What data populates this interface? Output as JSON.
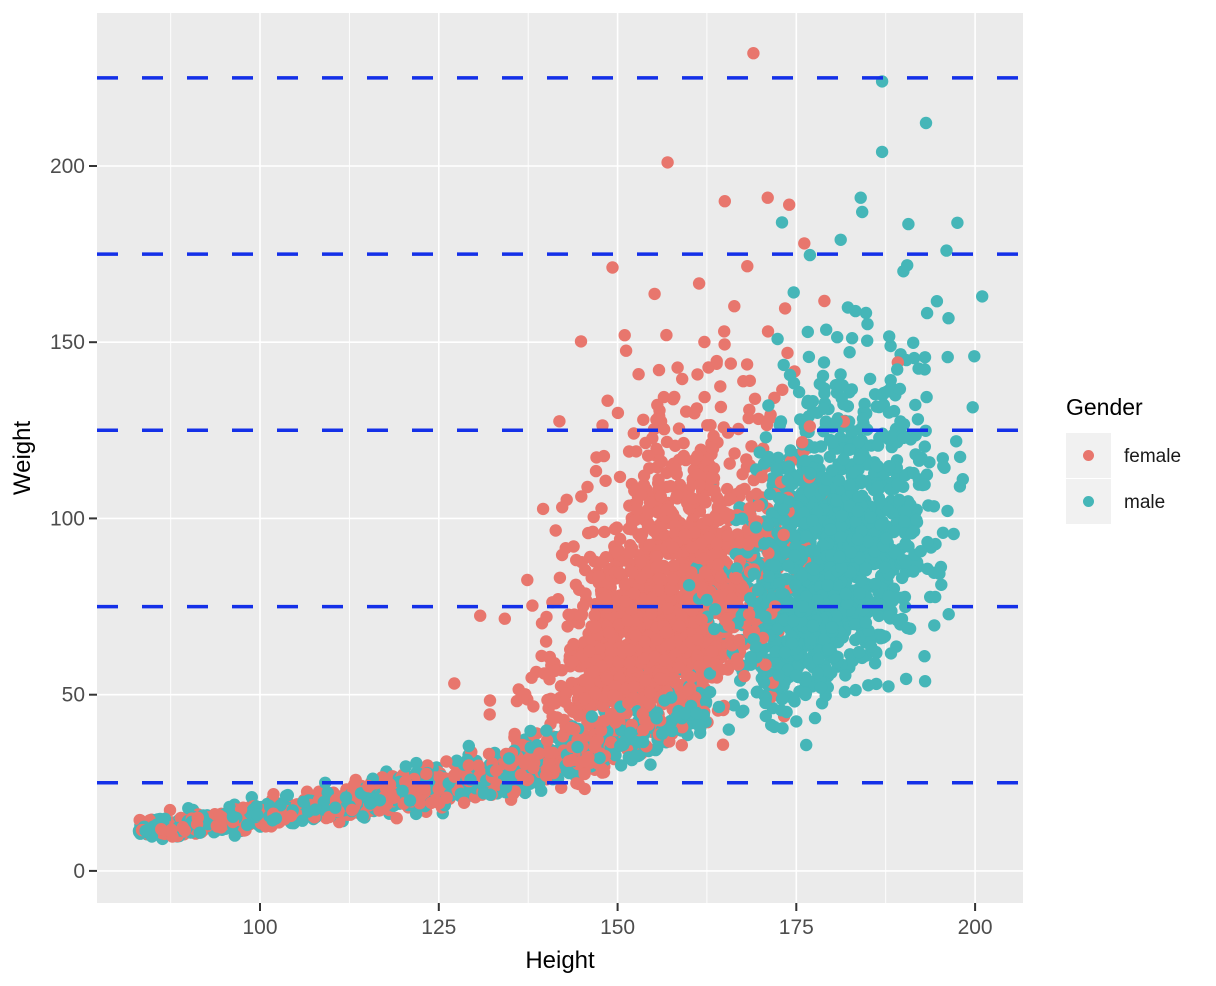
{
  "chart_data": {
    "type": "scatter",
    "title": "",
    "xlabel": "Height",
    "ylabel": "Weight",
    "axis": {
      "x_ticks": [
        100,
        125,
        150,
        175,
        200
      ],
      "x_minor": [
        87.5,
        112.5,
        137.5,
        162.5,
        187.5
      ],
      "y_ticks": [
        0,
        50,
        100,
        150,
        200
      ],
      "x_range": [
        77.2,
        206.7
      ],
      "y_range": [
        -9.1,
        243.4
      ],
      "grid": "on",
      "panel_bg": "#EBEBEB",
      "grid_color": "#FFFFFF",
      "tick_color": "#333333",
      "tick_label_color": "#4D4D4D"
    },
    "reference_lines": {
      "orientation": "horizontal",
      "values": [
        25,
        75,
        125,
        175,
        225
      ],
      "color": "#1430E8",
      "linetype": "dashed",
      "stroke_width": 3.5,
      "dash_pattern": [
        21,
        24
      ]
    },
    "legend": {
      "title": "Gender",
      "position": "right",
      "key_bg": "#F1F1F1",
      "entries": [
        {
          "label": "female",
          "color": "#E8766D"
        },
        {
          "label": "male",
          "color": "#45B6B8"
        }
      ]
    },
    "point_radius": 6.2,
    "series": [
      {
        "name": "female",
        "color": "#E8766D",
        "n": 2200,
        "seed": 20240711,
        "child": {
          "fraction": 0.3,
          "height_min": 83,
          "height_max": 150
        },
        "growth_curve": {
          "w0": 11.9,
          "h0": 85,
          "k": 0.0175,
          "log_sd": 0.12
        },
        "adult": {
          "height_mean": 156.5,
          "height_sd": 8.0,
          "logw_mean": 4.29,
          "logw_sd": 0.26,
          "h_slope": 0.017
        },
        "outliers": [
          [
            169,
            232
          ],
          [
            157,
            201
          ],
          [
            171,
            191
          ],
          [
            165,
            190
          ],
          [
            174,
            189
          ],
          [
            151,
            152
          ]
        ]
      },
      {
        "name": "male",
        "color": "#45B6B8",
        "n": 2200,
        "seed": 77,
        "child": {
          "fraction": 0.32,
          "height_min": 83,
          "height_max": 163
        },
        "growth_curve": {
          "w0": 11.9,
          "h0": 85,
          "k": 0.0175,
          "log_sd": 0.12
        },
        "adult": {
          "height_mean": 179.5,
          "height_sd": 7.0,
          "logw_mean": 4.466,
          "logw_sd": 0.24,
          "h_slope": 0.015
        },
        "outliers": [
          [
            187,
            224
          ],
          [
            187,
            204
          ],
          [
            184,
            191
          ],
          [
            173,
            184
          ],
          [
            201,
            163
          ],
          [
            196,
            176
          ]
        ]
      }
    ]
  }
}
